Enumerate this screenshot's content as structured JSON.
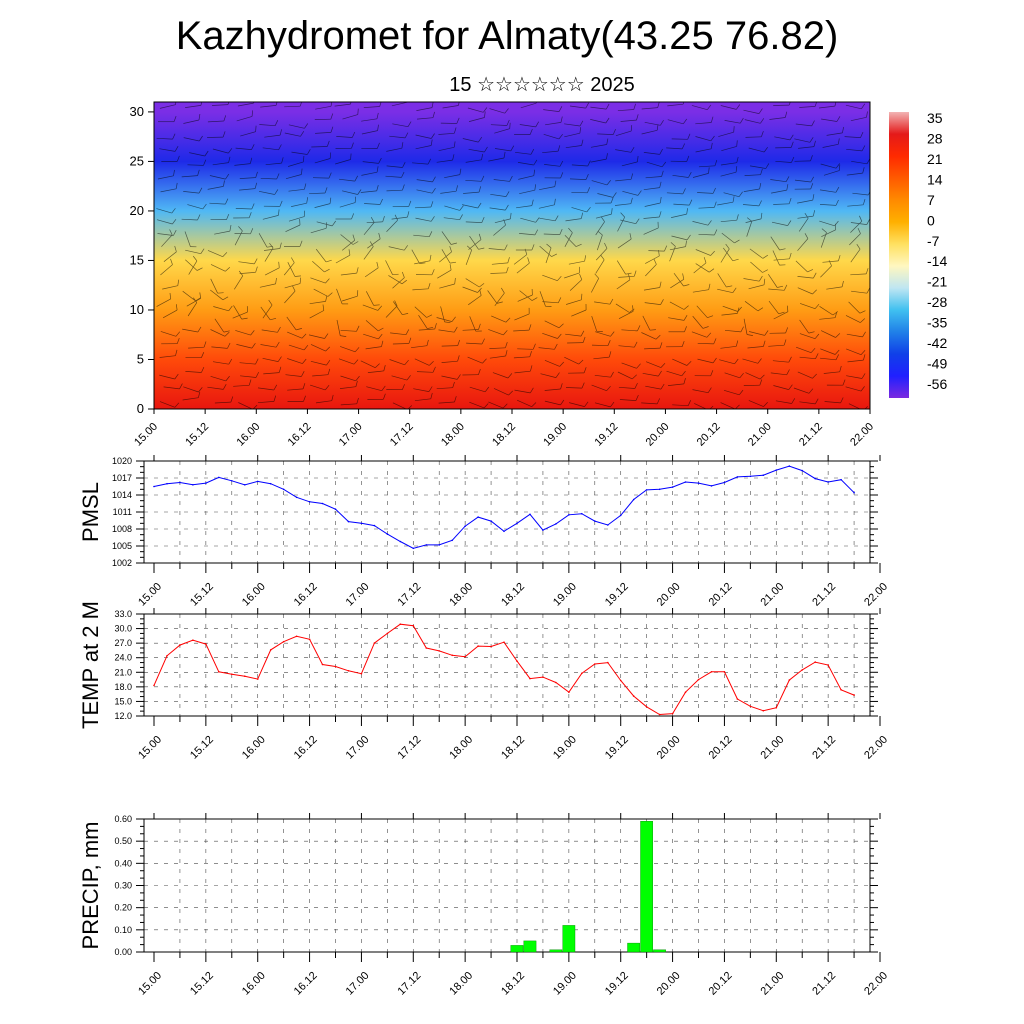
{
  "header": {
    "title": "Kazhydromet for Almaty(43.25 76.82)",
    "subtitle": "15 ☆☆☆☆☆☆ 2025"
  },
  "time_labels": [
    "15.00",
    "15.12",
    "16.00",
    "16.12",
    "17.00",
    "17.12",
    "18.00",
    "18.12",
    "19.00",
    "19.12",
    "20.00",
    "20.12",
    "21.00",
    "21.12",
    "22.00"
  ],
  "chart_data": [
    {
      "type": "heatmap",
      "yticks": [
        "0",
        "5",
        "10",
        "15",
        "20",
        "25",
        "30"
      ],
      "ylim": [
        0,
        31
      ],
      "xlim": [
        0,
        168
      ],
      "grid": false,
      "colorbar": {
        "labels": [
          "35",
          "28",
          "21",
          "14",
          "7",
          "0",
          "-7",
          "-14",
          "-21",
          "-28",
          "-35",
          "-42",
          "-49",
          "-56"
        ],
        "colors": [
          "#f2b3b3",
          "#e41a1a",
          "#ff2a00",
          "#ff5a00",
          "#ff8a00",
          "#ffb000",
          "#ffe060",
          "#fff7c0",
          "#bfe6f2",
          "#40c0f0",
          "#2080e8",
          "#1040e8",
          "#2020ff",
          "#7a2ae0"
        ]
      },
      "levels": [
        0,
        5,
        10,
        15,
        20,
        25,
        30
      ],
      "level_colors": [
        "#e8160f",
        "#ff4a0a",
        "#ff9c14",
        "#ffd84a",
        "#4fb8f5",
        "#1e2ae8",
        "#7b2ee6"
      ]
    },
    {
      "type": "line",
      "ylabel": "PMSL",
      "ylim": [
        1002,
        1020
      ],
      "yticks": [
        "1002",
        "1005",
        "1008",
        "1011",
        "1014",
        "1017",
        "1020"
      ],
      "grid": true,
      "color": "#0000ff",
      "x": [
        0,
        3,
        6,
        9,
        12,
        15,
        18,
        21,
        24,
        27,
        30,
        33,
        36,
        39,
        42,
        45,
        48,
        51,
        54,
        57,
        60,
        63,
        66,
        69,
        72,
        75,
        78,
        81,
        84,
        87,
        90,
        93,
        96,
        99,
        102,
        105,
        108,
        111,
        114,
        117,
        120,
        123,
        126,
        129,
        132,
        135,
        138,
        141,
        144,
        147,
        150,
        153,
        156,
        159,
        162
      ],
      "values": [
        1015.5,
        1016,
        1016.2,
        1015.8,
        1016.1,
        1017.1,
        1016.5,
        1015.8,
        1016.4,
        1016,
        1015,
        1013.6,
        1012.8,
        1012.5,
        1011.5,
        1009.3,
        1009,
        1008.6,
        1007.1,
        1005.8,
        1004.6,
        1005.2,
        1005.2,
        1006,
        1008.5,
        1010.1,
        1009.4,
        1007.6,
        1009,
        1010.6,
        1007.8,
        1008.9,
        1010.5,
        1010.7,
        1009.4,
        1008.7,
        1010.4,
        1013.2,
        1014.9,
        1015,
        1015.4,
        1016.3,
        1016.1,
        1015.6,
        1016.2,
        1017.2,
        1017.3,
        1017.5,
        1018.4,
        1019.1,
        1018.3,
        1016.9,
        1016.3,
        1016.7,
        1014.4
      ]
    },
    {
      "type": "line",
      "ylabel": "TEMP at 2 M",
      "ylim": [
        12,
        33
      ],
      "yticks": [
        "12.0",
        "15.0",
        "18.0",
        "21.0",
        "24.0",
        "27.0",
        "30.0",
        "33.0"
      ],
      "grid": true,
      "color": "#ff0000",
      "x": [
        0,
        3,
        6,
        9,
        12,
        15,
        18,
        21,
        24,
        27,
        30,
        33,
        36,
        39,
        42,
        45,
        48,
        51,
        54,
        57,
        60,
        63,
        66,
        69,
        72,
        75,
        78,
        81,
        84,
        87,
        90,
        93,
        96,
        99,
        102,
        105,
        108,
        111,
        114,
        117,
        120,
        123,
        126,
        129,
        132,
        135,
        138,
        141,
        144,
        147,
        150,
        153,
        156,
        159,
        162
      ],
      "values": [
        18.3,
        24.4,
        26.6,
        27.6,
        26.8,
        21.1,
        20.6,
        20.2,
        19.6,
        25.6,
        27.3,
        28.4,
        27.8,
        22.6,
        22.2,
        21.3,
        20.7,
        27.0,
        29.0,
        30.9,
        30.6,
        26.0,
        25.4,
        24.5,
        24.2,
        26.4,
        26.3,
        27.2,
        23.3,
        19.7,
        20.0,
        18.9,
        16.9,
        20.8,
        22.7,
        23.0,
        19.3,
        16.1,
        13.9,
        12.3,
        12.5,
        16.9,
        19.5,
        21.1,
        21.1,
        15.5,
        14.0,
        13.1,
        13.7,
        19.4,
        21.5,
        23.1,
        22.5,
        17.4,
        16.3
      ]
    },
    {
      "type": "bar",
      "ylabel": "PRECIP, mm",
      "ylim": [
        0,
        0.6
      ],
      "yticks": [
        "0.00",
        "0.10",
        "0.20",
        "0.30",
        "0.40",
        "0.50",
        "0.60"
      ],
      "grid": true,
      "color": "#00ff00",
      "x": [
        84,
        87,
        93,
        96,
        111,
        114,
        117
      ],
      "values": [
        0.03,
        0.05,
        0.01,
        0.12,
        0.04,
        0.59,
        0.01
      ]
    }
  ]
}
